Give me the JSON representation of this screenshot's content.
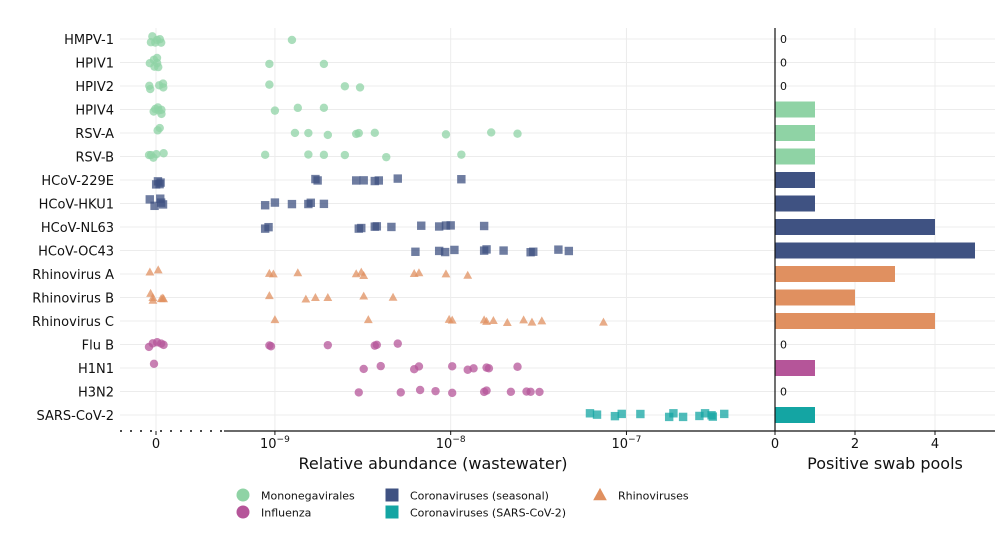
{
  "colors": {
    "mononegavirales": "#8fd3a5",
    "influenza": "#b55599",
    "seasonal": "#3f5282",
    "sarscov2": "#14a5a3",
    "rhinovirus": "#e09060"
  },
  "chart_data": [
    {
      "type": "scatter",
      "xscale": "log",
      "xlabel": "Relative abundance (wastewater)",
      "zero_tick": "0",
      "tick_labels": [
        {
          "value": 1e-09,
          "base": "10",
          "exp": "−9"
        },
        {
          "value": 1e-08,
          "base": "10",
          "exp": "−8"
        },
        {
          "value": 1e-07,
          "base": "10",
          "exp": "−7"
        }
      ],
      "xlim": [
        5e-10,
        7e-07
      ],
      "categories": [
        "HMPV-1",
        "HPIV1",
        "HPIV2",
        "HPIV4",
        "RSV-A",
        "RSV-B",
        "HCoV-229E",
        "HCoV-HKU1",
        "HCoV-NL63",
        "HCoV-OC43",
        "Rhinovirus A",
        "Rhinovirus B",
        "Rhinovirus C",
        "Flu B",
        "H1N1",
        "H3N2",
        "SARS-CoV-2"
      ],
      "series": [
        {
          "name": "HMPV-1",
          "group": "mononegavirales",
          "zeros": 6,
          "values": [
            1.25e-09
          ]
        },
        {
          "name": "HPIV1",
          "group": "mononegavirales",
          "zeros": 6,
          "values": [
            9.3e-10,
            1.9e-09
          ]
        },
        {
          "name": "HPIV2",
          "group": "mononegavirales",
          "zeros": 5,
          "values": [
            9.3e-10,
            2.5e-09,
            3.05e-09
          ]
        },
        {
          "name": "HPIV4",
          "group": "mononegavirales",
          "zeros": 6,
          "values": [
            1e-09,
            1.35e-09,
            1.9e-09
          ]
        },
        {
          "name": "RSV-A",
          "group": "mononegavirales",
          "zeros": 2,
          "values": [
            1.3e-09,
            1.55e-09,
            2e-09,
            2.9e-09,
            3e-09,
            3.7e-09,
            9.4e-09,
            1.7e-08,
            2.4e-08
          ]
        },
        {
          "name": "RSV-B",
          "group": "mononegavirales",
          "zeros": 5,
          "values": [
            8.8e-10,
            1.55e-09,
            1.9e-09,
            2.5e-09,
            4.3e-09,
            1.15e-08
          ]
        },
        {
          "name": "HCoV-229E",
          "group": "seasonal",
          "zeros": 4,
          "values": [
            1.7e-09,
            1.75e-09,
            2.9e-09,
            3.2e-09,
            3.7e-09,
            3.9e-09,
            5e-09,
            1.15e-08
          ]
        },
        {
          "name": "HCoV-HKU1",
          "group": "seasonal",
          "zeros": 5,
          "values": [
            8.8e-10,
            1e-09,
            1.25e-09,
            1.55e-09,
            1.6e-09,
            1.9e-09
          ]
        },
        {
          "name": "HCoV-NL63",
          "group": "seasonal",
          "zeros": 0,
          "values": [
            8.8e-10,
            9.2e-10,
            3e-09,
            3.1e-09,
            3.7e-09,
            3.8e-09,
            4.6e-09,
            6.8e-09,
            8.6e-09,
            9.4e-09,
            1e-08,
            1.55e-08
          ]
        },
        {
          "name": "HCoV-OC43",
          "group": "seasonal",
          "zeros": 0,
          "values": [
            6.3e-09,
            8.6e-09,
            9.3e-09,
            1.05e-08,
            1.55e-08,
            1.6e-08,
            2e-08,
            2.85e-08,
            2.95e-08,
            4.1e-08,
            4.7e-08
          ]
        },
        {
          "name": "Rhinovirus A",
          "group": "rhinovirus",
          "zeros": 2,
          "values": [
            9.3e-10,
            9.8e-10,
            1.35e-09,
            2.9e-09,
            3.1e-09,
            3.2e-09,
            6.2e-09,
            6.6e-09,
            9.4e-09,
            1.25e-08
          ]
        },
        {
          "name": "Rhinovirus B",
          "group": "rhinovirus",
          "zeros": 6,
          "values": [
            9.3e-10,
            1.5e-09,
            1.7e-09,
            2e-09,
            3.2e-09,
            4.7e-09
          ]
        },
        {
          "name": "Rhinovirus C",
          "group": "rhinovirus",
          "zeros": 0,
          "values": [
            1e-09,
            3.4e-09,
            9.8e-09,
            1.02e-08,
            1.55e-08,
            1.6e-08,
            1.75e-08,
            2.1e-08,
            2.6e-08,
            2.9e-08,
            3.3e-08,
            7.4e-08
          ]
        },
        {
          "name": "Flu B",
          "group": "influenza",
          "zeros": 5,
          "values": [
            9.3e-10,
            9.5e-10,
            2e-09,
            3.7e-09,
            3.8e-09,
            5e-09
          ]
        },
        {
          "name": "H1N1",
          "group": "influenza",
          "zeros": 1,
          "values": [
            3.2e-09,
            4e-09,
            6.2e-09,
            6.6e-09,
            1.02e-08,
            1.25e-08,
            1.35e-08,
            1.6e-08,
            1.65e-08,
            2.4e-08
          ]
        },
        {
          "name": "H3N2",
          "group": "influenza",
          "zeros": 0,
          "values": [
            3e-09,
            5.2e-09,
            6.7e-09,
            8.2e-09,
            1.02e-08,
            1.55e-08,
            1.6e-08,
            2.2e-08,
            2.7e-08,
            2.85e-08,
            3.2e-08
          ]
        },
        {
          "name": "SARS-CoV-2",
          "group": "sarscov2",
          "zeros": 0,
          "values": [
            6.2e-08,
            6.8e-08,
            8.6e-08,
            9.4e-08,
            1.2e-07,
            1.75e-07,
            1.85e-07,
            2.1e-07,
            2.6e-07,
            2.8e-07,
            3.05e-07,
            3.1e-07,
            3.6e-07
          ]
        }
      ]
    },
    {
      "type": "bar",
      "orientation": "horizontal",
      "xlabel": "Positive swab pools",
      "xlim": [
        0,
        5.5
      ],
      "xticks": [
        0,
        2,
        4
      ],
      "categories": [
        "HMPV-1",
        "HPIV1",
        "HPIV2",
        "HPIV4",
        "RSV-A",
        "RSV-B",
        "HCoV-229E",
        "HCoV-HKU1",
        "HCoV-NL63",
        "HCoV-OC43",
        "Rhinovirus A",
        "Rhinovirus B",
        "Rhinovirus C",
        "Flu B",
        "H1N1",
        "H3N2",
        "SARS-CoV-2"
      ],
      "values": [
        0,
        0,
        0,
        1,
        1,
        1,
        1,
        1,
        4,
        5,
        3,
        2,
        4,
        0,
        1,
        0,
        1
      ],
      "groups": [
        "mononegavirales",
        "mononegavirales",
        "mononegavirales",
        "mononegavirales",
        "mononegavirales",
        "mononegavirales",
        "seasonal",
        "seasonal",
        "seasonal",
        "seasonal",
        "rhinovirus",
        "rhinovirus",
        "rhinovirus",
        "influenza",
        "influenza",
        "influenza",
        "sarscov2"
      ],
      "zero_label": "0"
    }
  ],
  "legend": {
    "items": [
      {
        "label": "Mononegavirales",
        "group": "mononegavirales",
        "marker": "circle"
      },
      {
        "label": "Influenza",
        "group": "influenza",
        "marker": "circle"
      },
      {
        "label": "Coronaviruses (seasonal)",
        "group": "seasonal",
        "marker": "square"
      },
      {
        "label": "Coronaviruses (SARS-CoV-2)",
        "group": "sarscov2",
        "marker": "square"
      },
      {
        "label": "Rhinoviruses",
        "group": "rhinovirus",
        "marker": "triangle"
      }
    ]
  }
}
